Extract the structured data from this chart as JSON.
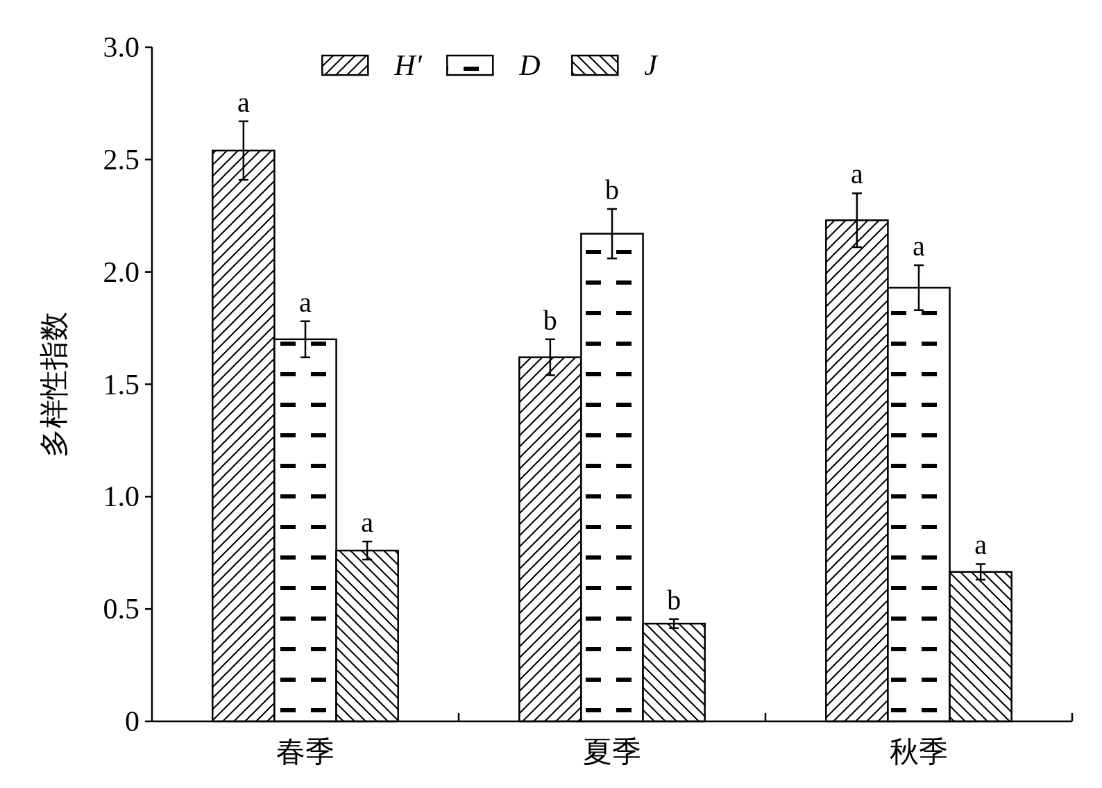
{
  "chart_data": {
    "type": "bar",
    "ylabel": "多样性指数",
    "categories": [
      "春季",
      "夏季",
      "秋季"
    ],
    "series": [
      {
        "name": "H′",
        "color": "#000000",
        "values": [
          2.54,
          1.62,
          2.23
        ],
        "errors": [
          0.13,
          0.08,
          0.12
        ]
      },
      {
        "name": "D",
        "color": "#000000",
        "values": [
          1.7,
          2.17,
          1.93
        ],
        "errors": [
          0.08,
          0.11,
          0.1
        ]
      },
      {
        "name": "J",
        "color": "#000000",
        "values": [
          0.76,
          0.435,
          0.665
        ],
        "errors": [
          0.04,
          0.02,
          0.035
        ]
      }
    ],
    "annotations": [
      "a",
      "b",
      "a",
      "a",
      "b",
      "a",
      "a",
      "b",
      "a"
    ],
    "ylim": [
      0,
      3
    ],
    "yticks": [
      0,
      0.5,
      {
        "value": 1,
        "label": "1.0"
      },
      1.5,
      {
        "value": 2,
        "label": "2.0"
      },
      2.5,
      {
        "value": 3,
        "label": "3.0"
      }
    ],
    "legend": "top"
  }
}
